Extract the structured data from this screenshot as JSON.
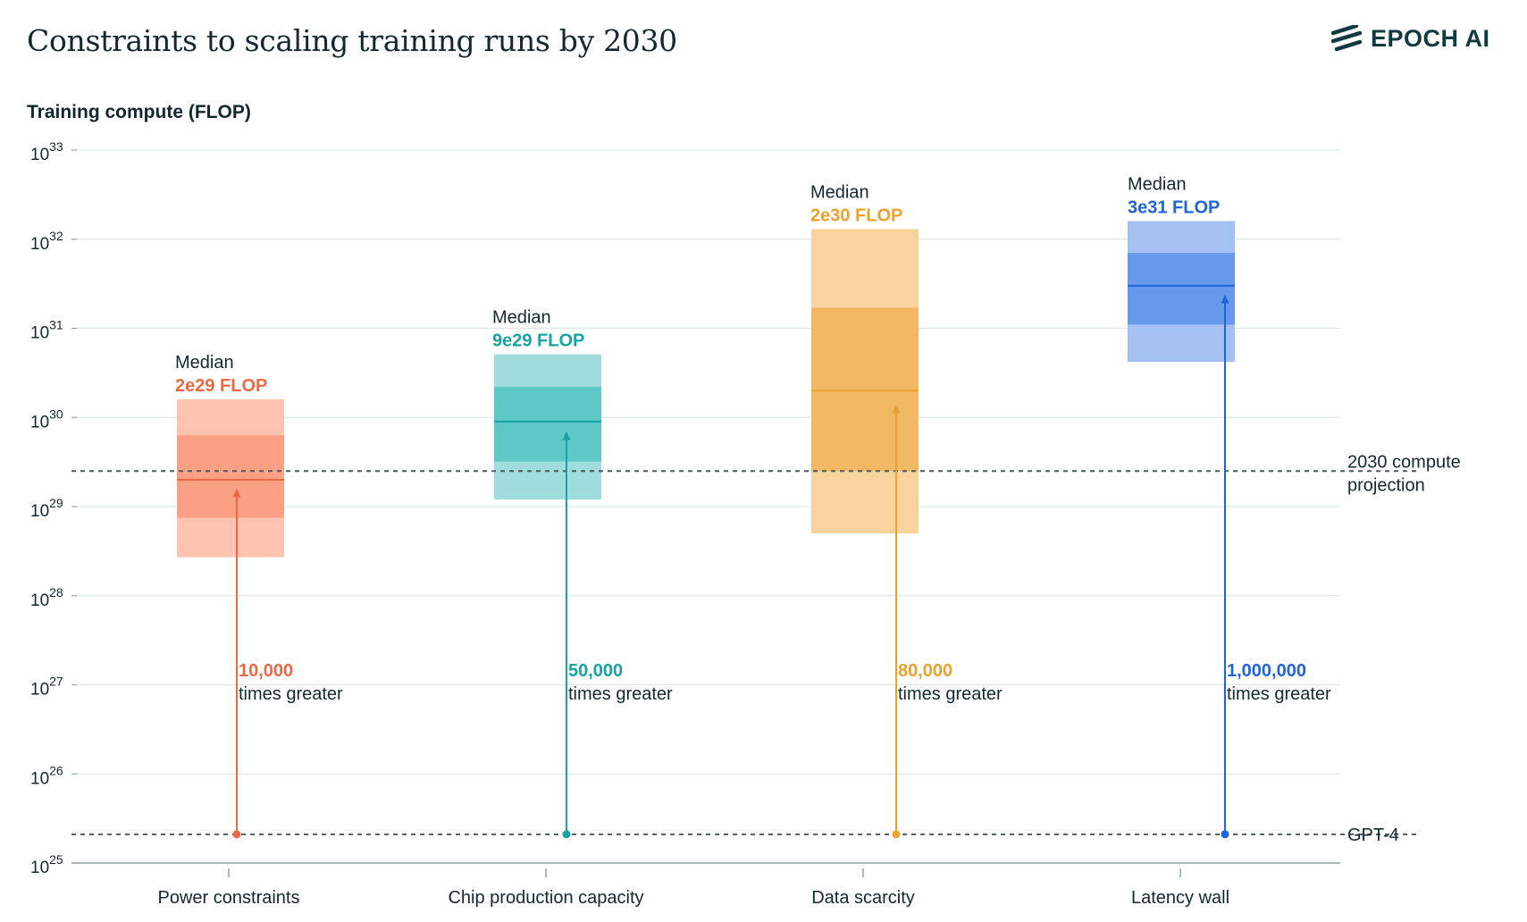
{
  "title": "Constraints to scaling training runs by 2030",
  "brand": "EPOCH AI",
  "chart_data": {
    "type": "box",
    "ylabel": "Training compute (FLOP)",
    "yscale": "log",
    "ylim_exponent": [
      25,
      33
    ],
    "ytick_exponents": [
      25,
      26,
      27,
      28,
      29,
      30,
      31,
      32,
      33
    ],
    "ytick_base": "10",
    "categories": [
      "Power constraints",
      "Chip production capacity",
      "Data scarcity",
      "Latency wall"
    ],
    "reference_lines": [
      {
        "label": "2030 compute projection",
        "value": 2.5e+29
      },
      {
        "label": "GPT-4",
        "value": 2.1e+25
      }
    ],
    "median_prefix": "Median",
    "times_suffix": "times greater",
    "series": [
      {
        "category": "Power constraints",
        "color": "#ea6a45",
        "light": "#fdc3b1",
        "mid": "#fb9f85",
        "median": 2e+29,
        "median_label": "2e29 FLOP",
        "multiplier": "10,000",
        "range_outer": [
          2.7e+28,
          1.6e+30
        ],
        "range_inner": [
          7.5e+28,
          6.3e+29
        ],
        "arrow_top": 1.6e+29
      },
      {
        "category": "Chip production capacity",
        "color": "#16a3a3",
        "light": "#9fdcdb",
        "mid": "#5ec8c7",
        "median": 9e+29,
        "median_label": "9e29 FLOP",
        "multiplier": "50,000",
        "range_outer": [
          1.2e+29,
          5.1e+30
        ],
        "range_inner": [
          3.2e+29,
          2.2e+30
        ],
        "arrow_top": 7e+29
      },
      {
        "category": "Data scarcity",
        "color": "#eaa22f",
        "light": "#f8d29c",
        "mid": "#f1b963",
        "median": 2e+30,
        "median_label": "2e30 FLOP",
        "multiplier": "80,000",
        "range_outer": [
          5e+28,
          1.3e+32
        ],
        "range_inner": [
          2.5e+29,
          1.7e+31
        ],
        "arrow_top": 1.4e+30
      },
      {
        "category": "Latency wall",
        "color": "#1f64d8",
        "light": "#a4c1f1",
        "mid": "#6699eb",
        "median": 3e+31,
        "median_label": "3e31 FLOP",
        "multiplier": "1,000,000",
        "range_outer": [
          4.2e+30,
          1.6e+32
        ],
        "range_inner": [
          1.1e+31,
          7e+31
        ],
        "arrow_top": 2.4e+31
      }
    ]
  }
}
